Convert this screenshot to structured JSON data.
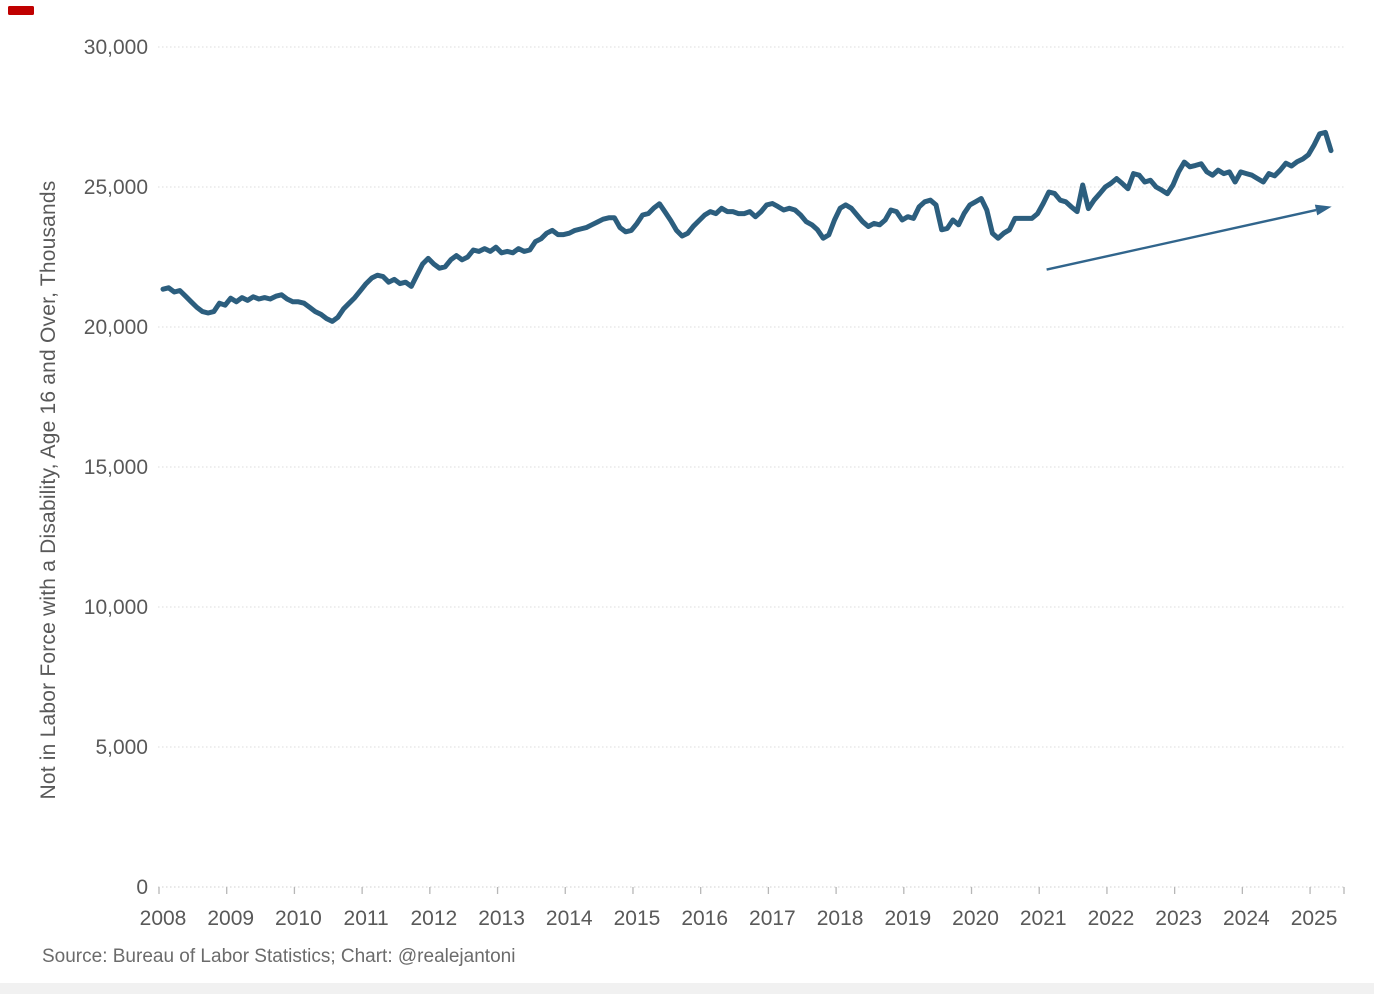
{
  "source_line": "Source: Bureau of Labor Statistics; Chart: @realejantoni",
  "decoration": {
    "red_mark_color": "#C00000",
    "bottom_bar_color": "#F1F1F1"
  },
  "chart_data": {
    "type": "line",
    "title": "",
    "xlabel": "",
    "ylabel": "Not in Labor Force with a Disability, Age 16 and Over, Thousands",
    "ylim": [
      0,
      30000
    ],
    "grid": true,
    "legend": "none",
    "line_color": "#2C5E7E",
    "arrow_color": "#31658C",
    "grid_color": "#DCDCDC",
    "axis_color": "#D9D9D9",
    "tick_color": "#B7B7B7",
    "label_color": "#595959",
    "x_tick_labels": [
      "2008",
      "2009",
      "2010",
      "2011",
      "2012",
      "2013",
      "2014",
      "2015",
      "2016",
      "2017",
      "2018",
      "2019",
      "2020",
      "2021",
      "2022",
      "2023",
      "2024",
      "2025"
    ],
    "y_ticks": [
      {
        "value": 30000,
        "label": "30,000"
      },
      {
        "value": 25000,
        "label": "25,000"
      },
      {
        "value": 20000,
        "label": "20,000"
      },
      {
        "value": 15000,
        "label": "15,000"
      },
      {
        "value": 10000,
        "label": "10,000"
      },
      {
        "value": 5000,
        "label": "5,000"
      },
      {
        "value": 0,
        "label": "0"
      }
    ],
    "frequency": "monthly",
    "x_start": "2008-01",
    "x_end": "2025-04",
    "series": [
      {
        "name": "Not in Labor Force with a Disability, Age 16 and Over, Thousands",
        "values": [
          21350,
          21400,
          21250,
          21300,
          21100,
          20900,
          20700,
          20550,
          20500,
          20550,
          20850,
          20780,
          21030,
          20900,
          21050,
          20950,
          21080,
          21000,
          21050,
          21000,
          21100,
          21150,
          21000,
          20900,
          20900,
          20850,
          20700,
          20550,
          20450,
          20300,
          20200,
          20350,
          20650,
          20850,
          21050,
          21300,
          21550,
          21750,
          21850,
          21800,
          21600,
          21700,
          21550,
          21600,
          21450,
          21850,
          22250,
          22450,
          22250,
          22100,
          22150,
          22400,
          22550,
          22400,
          22500,
          22750,
          22700,
          22800,
          22700,
          22850,
          22650,
          22700,
          22650,
          22800,
          22700,
          22750,
          23050,
          23150,
          23350,
          23450,
          23300,
          23300,
          23350,
          23450,
          23500,
          23550,
          23650,
          23750,
          23850,
          23900,
          23900,
          23550,
          23400,
          23450,
          23700,
          24000,
          24050,
          24250,
          24400,
          24100,
          23800,
          23450,
          23250,
          23350,
          23600,
          23800,
          24000,
          24120,
          24050,
          24240,
          24120,
          24120,
          24050,
          24050,
          24120,
          23940,
          24120,
          24360,
          24410,
          24300,
          24180,
          24240,
          24180,
          24000,
          23760,
          23650,
          23470,
          23170,
          23290,
          23820,
          24240,
          24360,
          24240,
          24000,
          23760,
          23590,
          23700,
          23650,
          23820,
          24180,
          24120,
          23820,
          23940,
          23880,
          24290,
          24470,
          24530,
          24360,
          23470,
          23520,
          23820,
          23650,
          24060,
          24360,
          24470,
          24590,
          24180,
          23350,
          23170,
          23350,
          23470,
          23880,
          23880,
          23880,
          23880,
          24050,
          24410,
          24820,
          24770,
          24530,
          24470,
          24290,
          24120,
          25070,
          24230,
          24530,
          24760,
          25000,
          25130,
          25300,
          25130,
          24940,
          25480,
          25420,
          25180,
          25240,
          25000,
          24890,
          24760,
          25070,
          25540,
          25890,
          25720,
          25770,
          25830,
          25540,
          25420,
          25600,
          25480,
          25540,
          25180,
          25540,
          25480,
          25420,
          25300,
          25180,
          25480,
          25400,
          25600,
          25850,
          25750,
          25900,
          26000,
          26150,
          26500,
          26900,
          26950,
          26300
        ]
      }
    ],
    "annotation_arrow": {
      "from": {
        "year": 2021.05,
        "value": 22050
      },
      "to": {
        "year": 2025.26,
        "value": 24300
      }
    }
  }
}
